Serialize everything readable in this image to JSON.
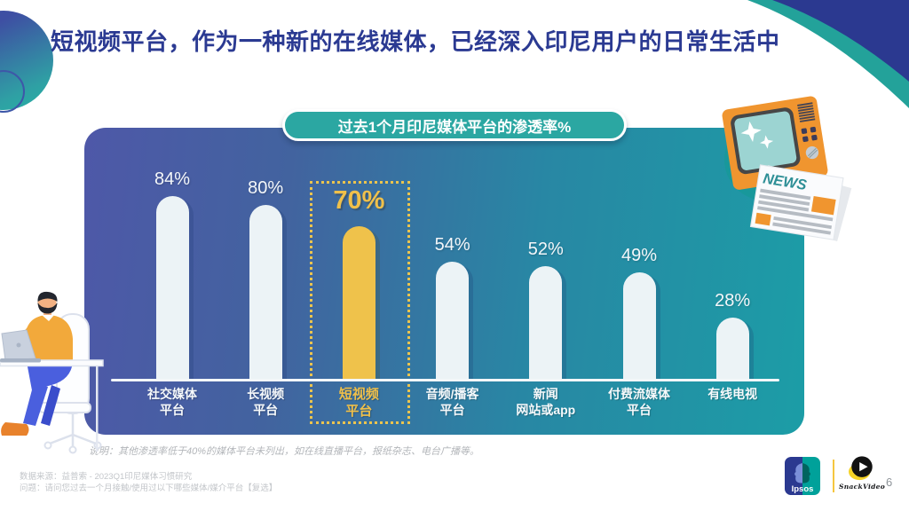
{
  "slide": {
    "title": "短视频平台，作为一种新的在线媒体，已经深入印尼用户的日常生活中",
    "page_number": "6"
  },
  "chart_data": {
    "type": "bar",
    "title": "过去1个月印尼媒体平台的渗透率%",
    "categories": [
      "社交媒体平台",
      "长视频平台",
      "短视频平台",
      "音频/播客平台",
      "新闻网站或app",
      "付费流媒体平台",
      "有线电视"
    ],
    "category_lines": [
      [
        "社交媒体",
        "平台"
      ],
      [
        "长视频",
        "平台"
      ],
      [
        "短视频",
        "平台"
      ],
      [
        "音频/播客",
        "平台"
      ],
      [
        "新闻",
        "网站或app"
      ],
      [
        "付费流媒体",
        "平台"
      ],
      [
        "有线电视"
      ]
    ],
    "values": [
      84,
      80,
      70,
      54,
      52,
      49,
      28
    ],
    "unit": "%",
    "highlight_index": 2,
    "highlight_category": "短视频平台",
    "ylim": [
      0,
      100
    ],
    "grid": false,
    "legend": false,
    "baseline_axis": true,
    "note": "说明：其他渗透率低于40%的媒体平台未列出，如在线直播平台，报纸杂志、电台广播等。"
  },
  "footer": {
    "source": "数据来源：益普索 - 2023Q1印尼媒体习惯研究",
    "question": "问题：请问您过去一个月接触/使用过以下哪些媒体/媒介平台【复选】"
  },
  "logos": {
    "ipsos": "Ipsos",
    "snackvideo": "SnackVideo"
  },
  "illustrations": {
    "news_masthead": "NEWS",
    "tv": "retro-tv-illustration",
    "newspaper": "newspaper-illustration",
    "person": "man-working-on-laptop-illustration"
  },
  "colors": {
    "title_blue": "#2B3A92",
    "pill_teal": "#2BA7A2",
    "accent_yellow": "#EFC24B",
    "bar_white": "#ECF3F6",
    "panel_gradient_left": "#4E58A8",
    "panel_gradient_right": "#1C9DA6",
    "corner_blue": "#2B3990",
    "corner_teal": "#23A29A"
  }
}
